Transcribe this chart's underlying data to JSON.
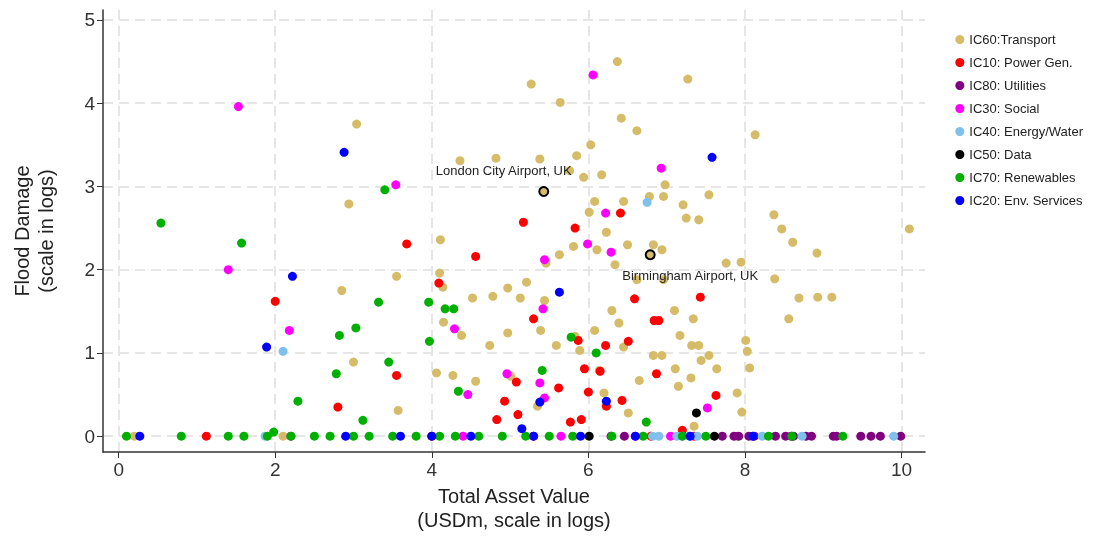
{
  "chart_data": {
    "type": "scatter",
    "xlabel": "Total Asset Value\n(USDm, scale in logs)",
    "ylabel": "Flood Damage\n(scale in logs)",
    "xlim": [
      -0.2,
      10.3
    ],
    "ylim": [
      -0.19,
      5.12
    ],
    "xticks": [
      0,
      2,
      4,
      6,
      8,
      10
    ],
    "yticks": [
      0,
      1,
      2,
      3,
      4,
      5
    ],
    "grid": true,
    "legend": "right",
    "marker": "circle",
    "annotations": [
      {
        "text": "London City Airport, UK",
        "x": 5.43,
        "y": 2.94
      },
      {
        "text": "Birmingham Airport, UK",
        "x": 6.79,
        "y": 2.18
      }
    ],
    "series": [
      {
        "name": "IC60:Transport",
        "color": "#d6bc68",
        "x": [
          3.04,
          2.94,
          2.85,
          3.0,
          3.55,
          4.36,
          4.82,
          5.38,
          5.27,
          5.64,
          6.37,
          7.27,
          8.13,
          6.62,
          6.42,
          5.85,
          5.76,
          5.94,
          6.03,
          6.08,
          6.17,
          6.45,
          6.78,
          6.98,
          6.96,
          7.25,
          7.21,
          7.41,
          7.54,
          8.37,
          8.47,
          8.61,
          8.92,
          10.1,
          8.69,
          8.93,
          9.11,
          8.56,
          8.38,
          7.76,
          7.95,
          8.01,
          8.03,
          8.06,
          7.54,
          7.41,
          7.17,
          7.1,
          6.96,
          6.94,
          6.83,
          6.62,
          6.5,
          6.34,
          6.23,
          6.11,
          6.01,
          5.81,
          5.63,
          5.46,
          5.21,
          5.44,
          5.13,
          4.97,
          4.78,
          4.52,
          4.1,
          4.14,
          4.11,
          4.15,
          4.27,
          4.06,
          4.56,
          4.38,
          4.74,
          4.97,
          5.01,
          5.39,
          5.35,
          5.59,
          5.83,
          5.89,
          6.08,
          6.14,
          6.3,
          6.39,
          6.45,
          6.65,
          6.83,
          6.94,
          7.11,
          7.15,
          7.34,
          7.32,
          7.31,
          7.44,
          7.64,
          7.9,
          7.96,
          7.35,
          6.51,
          6.2,
          3.57,
          5.43,
          6.79,
          0.2,
          2.1,
          7.9,
          8.1
        ],
        "values": [
          3.75,
          2.79,
          1.75,
          0.89,
          1.92,
          3.31,
          3.34,
          3.33,
          4.23,
          4.01,
          4.5,
          4.29,
          3.62,
          3.67,
          3.82,
          3.37,
          3.19,
          3.11,
          3.5,
          2.82,
          3.14,
          2.82,
          2.88,
          3.02,
          2.88,
          2.62,
          2.78,
          2.6,
          2.9,
          2.66,
          2.49,
          2.33,
          2.2,
          2.49,
          1.66,
          1.67,
          1.67,
          1.41,
          1.89,
          2.08,
          2.09,
          1.15,
          1.02,
          0.82,
          0.97,
          1.09,
          1.21,
          1.51,
          1.88,
          2.24,
          2.3,
          1.88,
          2.3,
          2.06,
          2.45,
          2.24,
          2.69,
          2.28,
          2.18,
          2.08,
          1.85,
          1.63,
          1.66,
          1.78,
          1.68,
          1.66,
          1.96,
          1.79,
          2.36,
          1.37,
          0.73,
          0.76,
          0.66,
          1.21,
          1.09,
          1.24,
          0.72,
          1.27,
          0.36,
          1.09,
          1.2,
          1.03,
          1.27,
          0.79,
          1.51,
          1.36,
          1.07,
          0.67,
          0.97,
          0.97,
          0.81,
          0.6,
          1.41,
          1.09,
          0.7,
          0.91,
          0.81,
          0.52,
          0.29,
          0.12,
          0.28,
          0.52,
          0.31,
          2.94,
          2.18,
          0,
          0,
          0,
          0
        ]
      },
      {
        "name": "IC10: Power Gen.",
        "color": "#ff0000",
        "x": [
          2.0,
          3.68,
          4.56,
          4.09,
          3.55,
          2.8,
          1.12,
          5.87,
          5.3,
          5.95,
          5.08,
          5.62,
          4.93,
          5.1,
          4.83,
          5.77,
          5.91,
          6.0,
          6.15,
          6.22,
          6.51,
          6.59,
          6.43,
          6.23,
          5.17,
          5.83,
          6.41,
          7.43,
          6.84,
          6.9,
          6.87,
          7.63,
          7.2,
          4.0,
          5.3,
          6.8,
          7.35
        ],
        "values": [
          1.62,
          2.31,
          2.16,
          1.84,
          0.73,
          0.35,
          0,
          1.15,
          1.41,
          0.81,
          0.65,
          0.58,
          0.42,
          0.26,
          0.2,
          0.17,
          0.2,
          0.53,
          0.78,
          1.09,
          1.14,
          1.65,
          0.43,
          0.36,
          2.57,
          2.5,
          2.68,
          1.67,
          1.39,
          1.39,
          0.75,
          0.49,
          0.07,
          0,
          0,
          0,
          0
        ]
      },
      {
        "name": "IC80: Utilities",
        "color": "#800080",
        "x": [
          6.29,
          6.46,
          7.71,
          7.86,
          7.92,
          8.05,
          8.12,
          8.39,
          8.52,
          8.59,
          8.62,
          8.78,
          8.85,
          9.13,
          9.17,
          9.48,
          9.61,
          9.73,
          9.99
        ],
        "values": [
          0,
          0,
          0,
          0,
          0,
          0,
          0,
          0,
          0,
          0,
          0,
          0,
          0,
          0,
          0,
          0,
          0,
          0,
          0
        ]
      },
      {
        "name": "IC30: Social",
        "color": "#ff00ff",
        "x": [
          1.53,
          1.4,
          2.18,
          3.54,
          6.06,
          6.93,
          6.22,
          6.29,
          5.99,
          5.44,
          5.42,
          4.29,
          4.46,
          4.96,
          5.38,
          5.44,
          7.52,
          2.2,
          4.4,
          5.65,
          6.6,
          7.05
        ],
        "values": [
          3.96,
          2.0,
          1.27,
          3.02,
          4.34,
          3.22,
          2.68,
          2.21,
          2.31,
          2.12,
          1.53,
          1.29,
          0.5,
          0.75,
          0.64,
          0.46,
          0.34,
          0,
          0,
          0,
          0,
          0
        ]
      },
      {
        "name": "IC40: Energy/Water",
        "color": "#80c0ec",
        "x": [
          2.1,
          6.75,
          1.87,
          6.82,
          6.9,
          7.13,
          7.2,
          7.29,
          7.39,
          8.22,
          8.73,
          9.9
        ],
        "values": [
          1.02,
          2.81,
          0,
          0,
          0,
          0,
          0,
          0,
          0,
          0,
          0,
          0
        ]
      },
      {
        "name": "IC50: Data",
        "color": "#000000",
        "x": [
          7.38,
          7.61,
          6.01
        ],
        "values": [
          0.28,
          0,
          0
        ]
      },
      {
        "name": "IC70: Renewables",
        "color": "#00b000",
        "x": [
          0.54,
          1.57,
          2.82,
          3.03,
          3.32,
          2.78,
          2.29,
          3.12,
          3.96,
          4.17,
          4.28,
          3.97,
          3.45,
          4.34,
          5.41,
          5.78,
          6.1,
          6.74,
          3.4,
          0.1,
          0.8,
          1.4,
          1.6,
          1.9,
          1.98,
          2.2,
          2.5,
          2.7,
          3.0,
          3.2,
          3.5,
          3.8,
          4.1,
          4.3,
          4.6,
          4.9,
          5.2,
          5.5,
          5.8,
          6.3,
          6.7,
          7.2,
          7.5,
          8.3,
          8.6,
          9.25
        ],
        "values": [
          2.56,
          2.32,
          1.21,
          1.3,
          1.61,
          0.75,
          0.42,
          0.19,
          1.61,
          1.53,
          1.53,
          1.14,
          0.89,
          0.54,
          0.79,
          1.19,
          1.0,
          0.17,
          2.96,
          0,
          0,
          0,
          0,
          0,
          0.05,
          0,
          0,
          0,
          0,
          0,
          0,
          0,
          0,
          0,
          0,
          0,
          0,
          0,
          0,
          0,
          0,
          0,
          0,
          0,
          0,
          0
        ]
      },
      {
        "name": "IC20: Env. Services",
        "color": "#0000ff",
        "x": [
          2.88,
          7.58,
          2.22,
          1.89,
          5.63,
          5.38,
          6.23,
          5.15,
          0.27,
          2.9,
          3.6,
          4.0,
          4.5,
          5.3,
          5.9,
          6.6,
          7.3,
          8.1
        ],
        "values": [
          3.41,
          3.35,
          1.92,
          1.07,
          1.73,
          0.41,
          0.42,
          0.09,
          0,
          0,
          0,
          0,
          0,
          0,
          0,
          0,
          0,
          0
        ]
      }
    ]
  }
}
